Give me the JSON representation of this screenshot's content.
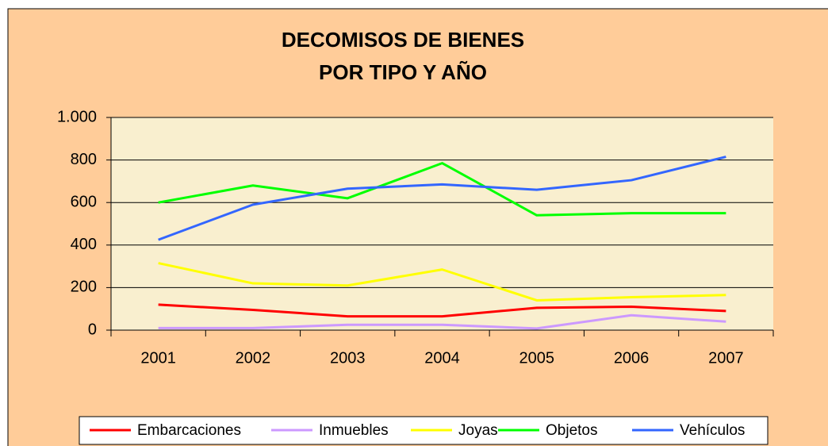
{
  "chart_data": {
    "type": "line",
    "title": [
      "DECOMISOS DE BIENES",
      "POR TIPO Y AÑO"
    ],
    "categories": [
      "2001",
      "2002",
      "2003",
      "2004",
      "2005",
      "2006",
      "2007"
    ],
    "series": [
      {
        "name": "Embarcaciones",
        "color": "#ff0000",
        "values": [
          120,
          95,
          65,
          65,
          105,
          110,
          90
        ]
      },
      {
        "name": "Inmuebles",
        "color": "#cc99ff",
        "values": [
          10,
          10,
          25,
          25,
          8,
          70,
          40
        ]
      },
      {
        "name": "Joyas",
        "color": "#ffff00",
        "values": [
          315,
          220,
          210,
          285,
          140,
          155,
          165
        ]
      },
      {
        "name": "Objetos",
        "color": "#00ff00",
        "values": [
          600,
          680,
          620,
          785,
          540,
          550,
          550
        ]
      },
      {
        "name": "Vehículos",
        "color": "#3366ff",
        "values": [
          425,
          590,
          665,
          685,
          660,
          705,
          815
        ]
      }
    ],
    "ylim": [
      0,
      1000
    ],
    "yticks": [
      0,
      200,
      400,
      600,
      800,
      {
        "value": 1000,
        "label": "1.000"
      }
    ],
    "grid": true,
    "legend": "bottom"
  }
}
